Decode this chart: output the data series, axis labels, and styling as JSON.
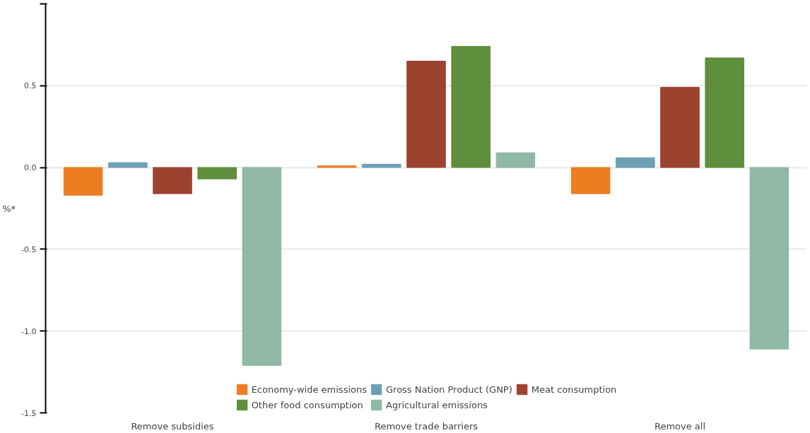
{
  "chart_data": {
    "type": "bar",
    "ylabel": "%*",
    "categories": [
      "Remove subsidies",
      "Remove trade barriers",
      "Remove all"
    ],
    "series": [
      {
        "name": "Economy-wide emissions",
        "color": "#ee7d22",
        "values": [
          -0.17,
          0.01,
          -0.16
        ]
      },
      {
        "name": "Gross Nation Product (GNP)",
        "color": "#6d9fb5",
        "values": [
          0.03,
          0.02,
          0.06
        ]
      },
      {
        "name": "Meat consumption",
        "color": "#9c4330",
        "values": [
          -0.16,
          0.65,
          0.49
        ]
      },
      {
        "name": "Other food consumption",
        "color": "#5e8f3c",
        "values": [
          -0.07,
          0.74,
          0.67
        ]
      },
      {
        "name": "Agricultural emissions",
        "color": "#8fb8a5",
        "values": [
          -1.21,
          0.09,
          -1.11
        ]
      }
    ],
    "ylim": [
      -1.5,
      1.0
    ],
    "yticks": [
      {
        "value": -1.5,
        "label": "-1.5"
      },
      {
        "value": -1.0,
        "label": "-1.0"
      },
      {
        "value": -0.5,
        "label": "-0.5"
      },
      {
        "value": 0.0,
        "label": "0.0"
      },
      {
        "value": 0.5,
        "label": "0.5"
      },
      {
        "value": 1.0,
        "label": null
      }
    ],
    "grid": "y",
    "legend": "bottom"
  }
}
